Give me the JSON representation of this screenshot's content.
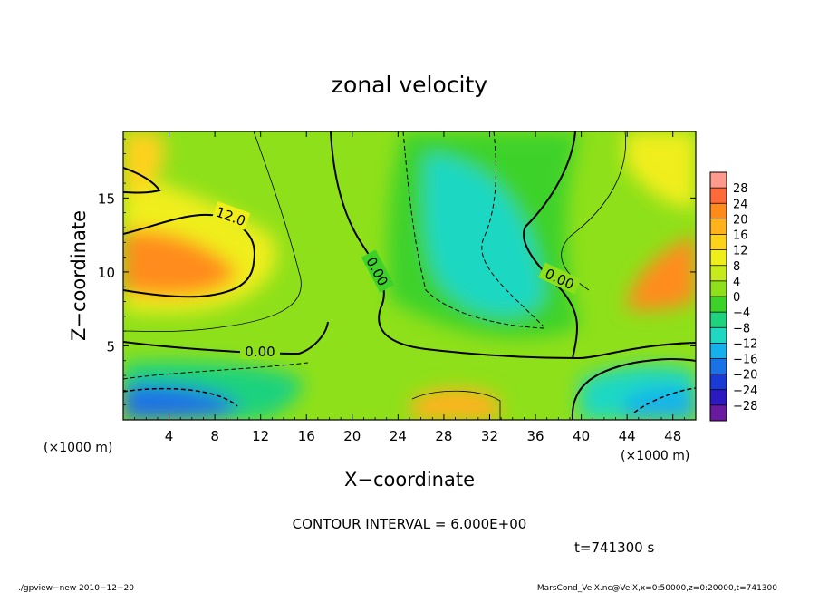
{
  "chart_data": {
    "type": "heatmap",
    "title": "zonal velocity",
    "xlabel": "X−coordinate",
    "ylabel": "Z−coordinate",
    "x_unit": "(×1000 m)",
    "y_unit": "(×1000 m)",
    "xlim": [
      0,
      50
    ],
    "ylim": [
      0,
      19.5
    ],
    "x_ticks": [
      4,
      8,
      12,
      16,
      20,
      24,
      28,
      32,
      36,
      40,
      44,
      48
    ],
    "y_ticks": [
      5,
      10,
      15
    ],
    "colorbar": {
      "labels": [
        "28",
        "24",
        "20",
        "16",
        "12",
        "8",
        "4",
        "0",
        "−4",
        "−8",
        "−12",
        "−16",
        "−20",
        "−24",
        "−28"
      ],
      "colors": [
        "#ff9a8c",
        "#ff6a3a",
        "#ff8c1a",
        "#ffb21a",
        "#ffd21a",
        "#f0ee1a",
        "#c6ea1a",
        "#8ee01a",
        "#3cd22a",
        "#1ed27e",
        "#1ed8c2",
        "#14b2ec",
        "#1a72e6",
        "#1a3ad6",
        "#2a1ac0",
        "#6a1a9e"
      ]
    },
    "contour_labels": [
      "12.0",
      "0.00",
      "0.00",
      "0.00"
    ],
    "contour_interval": "CONTOUR INTERVAL = 6.000E+00",
    "time": "t=741300 s",
    "footer_left": "./gpview−new  2010−12−20",
    "footer_right": "MarsCond_VelX.nc@VelX,x=0:50000,z=0:20000,t=741300"
  }
}
